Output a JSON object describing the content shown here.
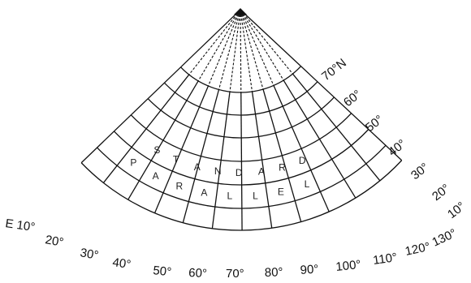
{
  "projection": {
    "standard_text_line1": [
      "S",
      "T",
      "A",
      "N",
      "D",
      "A",
      "R",
      "D"
    ],
    "standard_text_line2": [
      "P",
      "A",
      "R",
      "A",
      "L",
      "L",
      "E",
      "L"
    ],
    "latitude_labels": [
      "70°N",
      "60°",
      "50°",
      "40°",
      "30°",
      "20°",
      "10°"
    ],
    "longitude_labels": [
      "E 10°",
      "20°",
      "30°",
      "40°",
      "50°",
      "60°",
      "70°",
      "80°",
      "90°",
      "100°",
      "110°",
      "120°",
      "130°"
    ],
    "line_color": "#111111",
    "background": "#ffffff"
  }
}
